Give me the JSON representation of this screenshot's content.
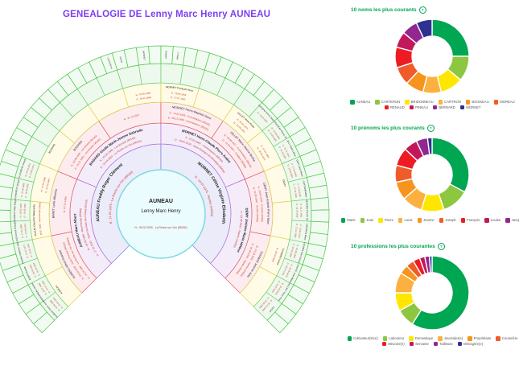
{
  "title": {
    "text": "GENEALOGIE DE Lenny Marc Henry AUNEAU",
    "color": "#7c3ff2"
  },
  "theme": {
    "chart_title_color": "#00a651",
    "date_text_color": "#c0392b",
    "name_text_color": "#222222"
  },
  "fan": {
    "center": {
      "surname": "AUNEAU",
      "given": "Lenny Marc Henry",
      "birth": "N : 09.02.2009 - La Roche-sur-Yon (85000)",
      "fill": "#eafcfd",
      "stroke": "#7fd9e2"
    },
    "span": {
      "start_deg": -135,
      "end_deg": 135
    },
    "generations": [
      {
        "ring": 1,
        "fill": "#ecebfa",
        "stroke": "#7b7bdc",
        "people": [
          {
            "name": "AUNEAU Freddy Roger Clément",
            "n": "N : 11.02.1975 - La Roche-sur-Yon (85000)",
            "d": ""
          },
          {
            "name": "MORNET Céline Virginie Elisabeth",
            "n": "N : 14.07.1976 - Nantes (44000)",
            "d": ""
          }
        ]
      },
      {
        "ring": 2,
        "fill": "#f5ecfa",
        "stroke": "#b36fd6",
        "people": [
          {
            "name": "AUNEAU Marc Albert",
            "n": "N : 18.09.1946 - Mouchamps (85640)",
            "d": "D : 27.01.2021 - Saint-Germain-de-Prinçay (85110)"
          },
          {
            "name": "BODARD Gisèle Marie-Jeanne Gabrielle",
            "n": "N : 25.05.1946 - Les Essarts (85140)",
            "d": "D : 25.03.2003 - La Roche-sur-Yon (85000)"
          },
          {
            "name": "MORNET Henri-Claude Pierre André",
            "n": "N : 22.03.1947 - Commequiers (85220)",
            "d": "D : 19.05.2018 - Saint-Georges-de-Montaigu (85600)"
          },
          {
            "name": "DEMY Josiane Marie Hélène",
            "n": "N : 04.09.1952 - Nantes (44000)",
            "d": ""
          }
        ]
      },
      {
        "ring": 3,
        "fill": "#fdecef",
        "stroke": "#e05c5c",
        "people": [
          {
            "name": "AUNEAU Alfred Gustave",
            "n": "N : 09.03.1920 - Saint-Prouant (85110)",
            "d": "D : 14.04.1982 - La Roche-sur-Yon (85000)"
          },
          {
            "name": "BARET Lydie Albertine",
            "n": "",
            "d": "D : 07.01.1996"
          },
          {
            "name": "BODARD",
            "n": "N : 30.08.1925 - Les Essarts (85140)",
            "d": "D : 15.11.1993 - Les Essarts (85140)"
          },
          {
            "name": "",
            "n": "N : 27.12.1927",
            "d": ""
          },
          {
            "name": "MORNET Pierre-Baptiste Henri",
            "n": "N : 14.02.1926 - Commequiers (85220)",
            "d": "D : 08.12.1999 - Commequiers (85220)"
          },
          {
            "name": "GILLET Marie-Jeanne Berthe",
            "n": "N : 09.06.1927 - Commequiers (85220)",
            "d": "D : 12.03.1997 - Challans (85300)"
          },
          {
            "name": "DEMY Jean Aristide Pierre Marc",
            "n": "N : 14.04.1926 - Corsept (44560)",
            "d": "D : 21.09.1987 - Nantes (44000)"
          },
          {
            "name": "THOMAS Jeanne Julia",
            "n": "N : 01.03.1931 - Nantes (44000)",
            "d": "D : 02.04.1992 - Nantes (44000)"
          }
        ]
      },
      {
        "ring": 4,
        "fill": "#fffbe6",
        "stroke": "#ddd34f",
        "people": [
          {
            "name": "AUNEAU",
            "n": "",
            "d": ""
          },
          {
            "name": "",
            "n": "",
            "d": ""
          },
          {
            "name": "PLAUD Claudine Marguerite",
            "n": "N : 25.07.1893 - Mouchamps (85640)",
            "d": ""
          },
          {
            "name": "",
            "n": "N : 17.04.1898",
            "d": "D : 21.03.1967"
          },
          {
            "name": "BODARD",
            "n": "",
            "d": ""
          },
          {
            "name": "",
            "n": "",
            "d": ""
          },
          {
            "name": "",
            "n": "",
            "d": ""
          },
          {
            "name": "",
            "n": "N : 02.06.1899",
            "d": "D : 09.11.1968"
          },
          {
            "name": "MORNET François Henri",
            "n": "N : 18.04.1898",
            "d": "D : 27.07.1942"
          },
          {
            "name": "",
            "n": "",
            "d": ""
          },
          {
            "name": "GILLET Marie-Rose",
            "n": "N : 30.05.1874",
            "d": "D : 22.06.1961"
          },
          {
            "name": "",
            "n": "N : 07.01.1891",
            "d": "D : 09.03.1971"
          },
          {
            "name": "DEMY",
            "n": "",
            "d": ""
          },
          {
            "name": "",
            "n": "",
            "d": ""
          },
          {
            "name": "THOMAS Victor",
            "n": "N : 28.03.1904",
            "d": ""
          },
          {
            "name": "",
            "n": "",
            "d": ""
          }
        ]
      },
      {
        "ring": 5,
        "fill": "#edf9ed",
        "stroke": "#6fcf6f",
        "people": [
          {
            "name": "AUNEAU Pierre Jean",
            "n": "N : 10.04.1865",
            "d": "D : 01.06.1915"
          },
          {
            "name": "BRIDONNEAU Jeanne",
            "n": "N : 18.07.1869",
            "d": "D : 27.07.1952"
          },
          {
            "name": "BOBIN Rosalie",
            "n": "N : 29.03.1891",
            "d": "D : 01.04.1952"
          },
          {
            "name": "PINEAU Delphine Julia",
            "n": "N : 07.01.1873",
            "d": "D : 19.02.1952"
          },
          {
            "name": "PLAUD Ernest Théophile",
            "n": "N : 17.04.1890",
            "d": "D : 22.06.1914"
          },
          {
            "name": "CHAVIGNEAU Célia Marguerite",
            "n": "N : 28.01.1895",
            "d": "D : 19.05.1962"
          },
          {
            "name": "FLANDROIS Jacques",
            "n": "N : 01.06.1899",
            "d": "D : 14.03.1920"
          },
          {
            "name": "FLANDROIS Joseph",
            "n": "N : 24.04.1892",
            "d": "D : 14.03.1972"
          },
          {
            "name": "",
            "n": "",
            "d": ""
          },
          {
            "name": "",
            "n": "",
            "d": ""
          },
          {
            "name": "",
            "n": "",
            "d": ""
          },
          {
            "name": "",
            "n": "",
            "d": ""
          },
          {
            "name": "",
            "n": "",
            "d": ""
          },
          {
            "name": "",
            "n": "",
            "d": ""
          },
          {
            "name": "",
            "n": "",
            "d": ""
          },
          {
            "name": "",
            "n": "",
            "d": ""
          },
          {
            "name": "",
            "n": "",
            "d": ""
          },
          {
            "name": "",
            "n": "",
            "d": ""
          },
          {
            "name": "",
            "n": "",
            "d": ""
          },
          {
            "name": "",
            "n": "",
            "d": ""
          },
          {
            "name": "",
            "n": "",
            "d": ""
          },
          {
            "name": "BOISSEAU Pierre Jérémie",
            "n": "N : 12.04.1903",
            "d": ""
          },
          {
            "name": "PERROCHEAU Pierre Joseph",
            "n": "N : 14.05.1903",
            "d": "D : 14.05.1954"
          },
          {
            "name": "JOLY Marie Céline",
            "n": "N : 12.01.1904",
            "d": "D : 12.04.1954"
          },
          {
            "name": "DEMY Jean Marie",
            "n": "N : 27.04.1903",
            "d": "D : 19.03.1957"
          },
          {
            "name": "CARTRON Marie",
            "n": "N : 22.05.1905",
            "d": "D : 17.03.1936"
          },
          {
            "name": "GRÉGOIRE Francis Henri",
            "n": "N : 04.07.1901",
            "d": "D : 12.09.1946"
          },
          {
            "name": "CARTRON Marie",
            "n": "N : 18.04.1872",
            "d": "D : 22.11.1950"
          },
          {
            "name": "THOMAS Jean Honoré",
            "n": "N : 25.02.1904",
            "d": "D : 26.01.1949"
          },
          {
            "name": "COINTE Jean Marie",
            "n": "N : 28.05.1870",
            "d": "D : 03.12.1921"
          },
          {
            "name": "VAILLANT Victor Henri",
            "n": "N : 10.03.1871",
            "d": "D : 25.02.1942"
          },
          {
            "name": "LEGAY",
            "n": "N : 20.07.1908",
            "d": "D : 20.09.1980"
          }
        ]
      },
      {
        "ring": 6,
        "fill": "#f2fbf2",
        "stroke": "#49c649",
        "names": [
          "",
          "",
          "",
          "",
          "",
          "",
          "",
          "",
          "",
          "",
          "",
          "",
          "",
          "",
          "",
          "",
          "",
          "",
          "",
          "",
          "",
          "",
          "",
          "",
          "",
          "",
          "",
          "CARTERON",
          "PAPIN",
          "",
          "MORNET",
          "",
          "ADRON",
          "MAILLY",
          "",
          "",
          "",
          "",
          "",
          "",
          "",
          "",
          "",
          "",
          "",
          "",
          "",
          "",
          "",
          "",
          "",
          "",
          "",
          "",
          "",
          "",
          "",
          "",
          "",
          "",
          "",
          "",
          "",
          ""
        ]
      }
    ]
  },
  "charts": [
    {
      "title": "10 noms les plus courants",
      "info_icon": "?",
      "legend_rows": [
        6,
        4
      ],
      "chart_data": {
        "type": "pie",
        "donut": true,
        "legend_position": "bottom",
        "categories": [
          "AUNEAU",
          "CARTERON",
          "BRIDONNEAU",
          "CARTRON",
          "BOISSEAU",
          "MOREAU",
          "RENAUD",
          "PINEAU",
          "BERNARD",
          "MORNET"
        ],
        "values": [
          25,
          11,
          10,
          8,
          8,
          8,
          9,
          7,
          7,
          7
        ],
        "colors": [
          "#00a651",
          "#8dc63f",
          "#ffe600",
          "#fbb040",
          "#f7941d",
          "#f15a29",
          "#ed1c24",
          "#c2185b",
          "#92278f",
          "#2e3192"
        ]
      }
    },
    {
      "title": "10 prénoms les plus courants",
      "info_icon": "?",
      "legend_rows": [
        9
      ],
      "chart_data": {
        "type": "pie",
        "donut": true,
        "legend_position": "bottom",
        "categories": [
          "Marie",
          "Jean",
          "Pierre",
          "Louis",
          "Jeanne",
          "Joseph",
          "François",
          "Louise",
          "Jacques",
          ""
        ],
        "values": [
          33,
          12,
          10,
          9,
          8,
          7.5,
          8,
          6,
          5,
          2
        ],
        "colors": [
          "#00a651",
          "#8dc63f",
          "#ffe600",
          "#fbb040",
          "#f7941d",
          "#f15a29",
          "#ed1c24",
          "#c2185b",
          "#92278f",
          "#2e3192"
        ]
      }
    },
    {
      "title": "10 professions les plus courantes",
      "info_icon": "?",
      "legend_rows": [
        6,
        4
      ],
      "chart_data": {
        "type": "pie",
        "donut": true,
        "legend_position": "bottom",
        "categories": [
          "Cultivateur(trice)",
          "Laboureur",
          "Domestique",
          "Journalier(e)",
          "Propriétaire",
          "Couturière",
          "Meunier(e)",
          "Servante",
          "Tailleuse",
          "Ménagère(e)"
        ],
        "values": [
          59,
          8,
          8,
          9,
          4,
          3.5,
          3,
          2.3,
          2,
          1.2
        ],
        "colors": [
          "#00a651",
          "#8dc63f",
          "#ffe600",
          "#fbb040",
          "#f7941d",
          "#f15a29",
          "#ed1c24",
          "#c2185b",
          "#92278f",
          "#2e3192"
        ]
      }
    }
  ]
}
